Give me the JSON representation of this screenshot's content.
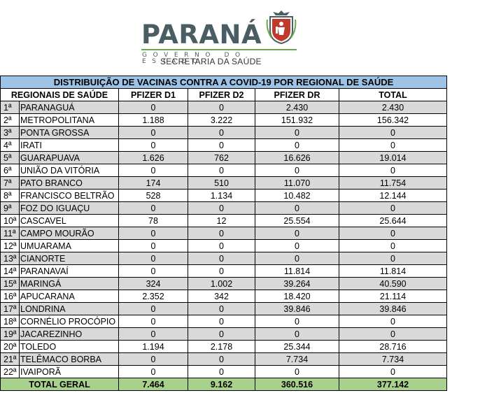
{
  "header": {
    "logo_word": "PARANÁ",
    "logo_sub": "GOVERNO DO ESTADO",
    "department": "SECRETARIA DA SAÚDE"
  },
  "table": {
    "title": "DISTRIBUIÇÃO DE VACINAS CONTRA A COVID-19 POR REGIONAL DE SAÚDE",
    "columns": [
      "REGIONAIS DE SAÚDE",
      "PFIZER D1",
      "PFIZER D2",
      "PFIZER DR",
      "TOTAL"
    ],
    "rows": [
      {
        "idx": "1ª",
        "region": "PARANAGUÁ",
        "d1": "0",
        "d2": "0",
        "dr": "2.430",
        "total": "2.430"
      },
      {
        "idx": "2ª",
        "region": "METROPOLITANA",
        "d1": "1.188",
        "d2": "3.222",
        "dr": "151.932",
        "total": "156.342"
      },
      {
        "idx": "3ª",
        "region": "PONTA GROSSA",
        "d1": "0",
        "d2": "0",
        "dr": "0",
        "total": "0"
      },
      {
        "idx": "4ª",
        "region": "IRATI",
        "d1": "0",
        "d2": "0",
        "dr": "0",
        "total": "0"
      },
      {
        "idx": "5ª",
        "region": "GUARAPUAVA",
        "d1": "1.626",
        "d2": "762",
        "dr": "16.626",
        "total": "19.014"
      },
      {
        "idx": "6ª",
        "region": "UNIÃO DA VITÓRIA",
        "d1": "0",
        "d2": "0",
        "dr": "0",
        "total": "0"
      },
      {
        "idx": "7ª",
        "region": "PATO BRANCO",
        "d1": "174",
        "d2": "510",
        "dr": "11.070",
        "total": "11.754"
      },
      {
        "idx": "8ª",
        "region": "FRANCISCO BELTRÃO",
        "d1": "528",
        "d2": "1.134",
        "dr": "10.482",
        "total": "12.144"
      },
      {
        "idx": "9ª",
        "region": "FOZ DO IGUAÇU",
        "d1": "0",
        "d2": "0",
        "dr": "0",
        "total": "0"
      },
      {
        "idx": "10ª",
        "region": "CASCAVEL",
        "d1": "78",
        "d2": "12",
        "dr": "25.554",
        "total": "25.644"
      },
      {
        "idx": "11ª",
        "region": "CAMPO MOURÃO",
        "d1": "0",
        "d2": "0",
        "dr": "0",
        "total": "0"
      },
      {
        "idx": "12ª",
        "region": "UMUARAMA",
        "d1": "0",
        "d2": "0",
        "dr": "0",
        "total": "0"
      },
      {
        "idx": "13ª",
        "region": "CIANORTE",
        "d1": "0",
        "d2": "0",
        "dr": "0",
        "total": "0"
      },
      {
        "idx": "14ª",
        "region": "PARANAVAÍ",
        "d1": "0",
        "d2": "0",
        "dr": "11.814",
        "total": "11.814"
      },
      {
        "idx": "15ª",
        "region": "MARINGÁ",
        "d1": "324",
        "d2": "1.002",
        "dr": "39.264",
        "total": "40.590"
      },
      {
        "idx": "16ª",
        "region": "APUCARANA",
        "d1": "2.352",
        "d2": "342",
        "dr": "18.420",
        "total": "21.114"
      },
      {
        "idx": "17ª",
        "region": "LONDRINA",
        "d1": "0",
        "d2": "0",
        "dr": "39.846",
        "total": "39.846"
      },
      {
        "idx": "18ª",
        "region": "CORNÉLIO PROCÓPIO",
        "d1": "0",
        "d2": "0",
        "dr": "0",
        "total": "0"
      },
      {
        "idx": "19ª",
        "region": "JACAREZINHO",
        "d1": "0",
        "d2": "0",
        "dr": "0",
        "total": "0"
      },
      {
        "idx": "20ª",
        "region": "TOLEDO",
        "d1": "1.194",
        "d2": "2.178",
        "dr": "25.344",
        "total": "28.716"
      },
      {
        "idx": "21ª",
        "region": "TELÊMACO BORBA",
        "d1": "0",
        "d2": "0",
        "dr": "7.734",
        "total": "7.734"
      },
      {
        "idx": "22ª",
        "region": "IVAIPORÃ",
        "d1": "0",
        "d2": "0",
        "dr": "0",
        "total": "0"
      }
    ],
    "total": {
      "label": "TOTAL GERAL",
      "d1": "7.464",
      "d2": "9.162",
      "dr": "360.516",
      "total": "377.142"
    }
  },
  "colors": {
    "title_bg": "#9dc3e6",
    "shade_bg": "#d9d9d9",
    "total_bg": "#a9d18e",
    "logo_text": "#4a5d63",
    "logo_accent": "#6aa84f"
  },
  "icons": [
    "parana-coat-of-arms-icon"
  ]
}
